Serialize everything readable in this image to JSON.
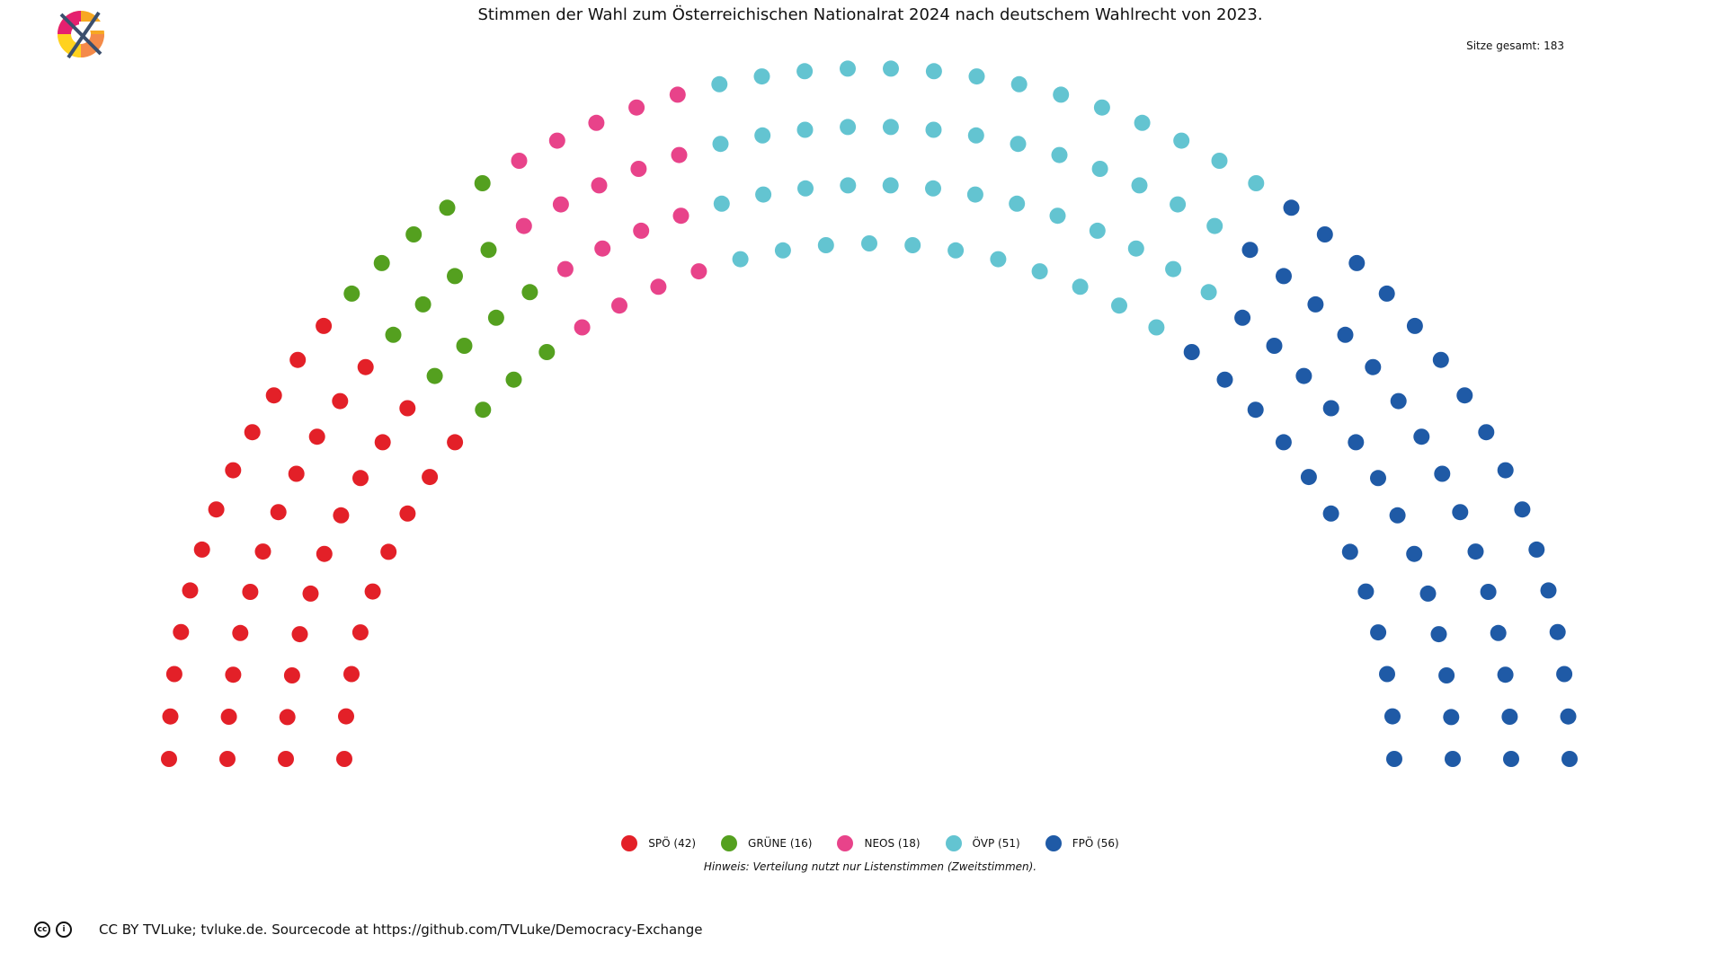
{
  "header": {
    "title": "Stimmen der Wahl zum Österreichischen Nationalrat 2024 nach deutschem Wahlrecht von 2023.",
    "total_seats_label": "Sitze gesamt: 183"
  },
  "logo": {
    "icon": "crossed-out-logo-icon",
    "colors": [
      "#e5206f",
      "#f7a823",
      "#ffd21f",
      "#3b4f6e"
    ]
  },
  "chart_data": {
    "type": "parliament",
    "title": "Stimmen der Wahl zum Österreichischen Nationalrat 2024 nach deutschem Wahlrecht von 2023.",
    "total_seats": 183,
    "rows": 4,
    "series": [
      {
        "name": "SPÖ",
        "seats": 42,
        "color": "#e32028",
        "legend_label": "SPÖ (42)"
      },
      {
        "name": "GRÜNE",
        "seats": 16,
        "color": "#54a01f",
        "legend_label": "GRÜNE (16)"
      },
      {
        "name": "NEOS",
        "seats": 18,
        "color": "#e8438a",
        "legend_label": "NEOS (18)"
      },
      {
        "name": "ÖVP",
        "seats": 51,
        "color": "#63c4d1",
        "legend_label": "ÖVP (51)"
      },
      {
        "name": "FPÖ",
        "seats": 56,
        "color": "#1f5aa6",
        "legend_label": "FPÖ (56)"
      }
    ],
    "legend_placement": "bottom-center",
    "annotation": "Hinweis: Verteilung nutzt nur Listenstimmen (Zweitstimmen)."
  },
  "footer": {
    "cc_icons": [
      "cc-icon",
      "attribution-icon"
    ],
    "text": "CC BY TVLuke; tvluke.de. Sourcecode at https://github.com/TVLuke/Democracy-Exchange"
  }
}
